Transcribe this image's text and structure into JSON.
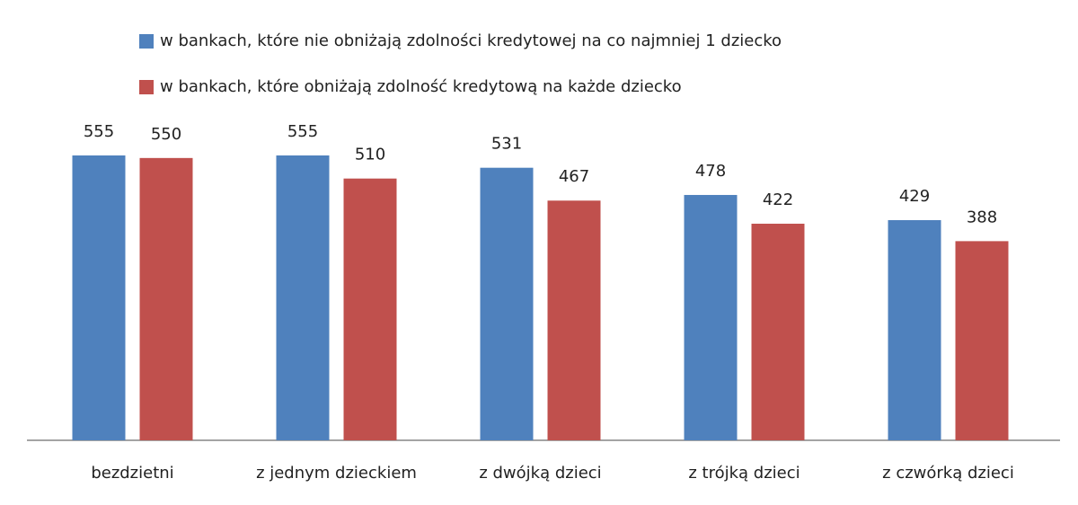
{
  "chart_data": {
    "type": "bar",
    "categories": [
      "bezdzietni",
      "z jednym dzieckiem",
      "z dwójką dzieci",
      "z trójką dzieci",
      "z czwórką dzieci"
    ],
    "series": [
      {
        "name": "w bankach, które nie obniżają zdolności kredytowej na co najmniej 1 dziecko",
        "color": "#4f81bd",
        "values": [
          555,
          555,
          531,
          478,
          429
        ]
      },
      {
        "name": "w bankach, które obniżają zdolność kredytową na każde dziecko",
        "color": "#c0504d",
        "values": [
          550,
          510,
          467,
          422,
          388
        ]
      }
    ],
    "legend": "top"
  }
}
